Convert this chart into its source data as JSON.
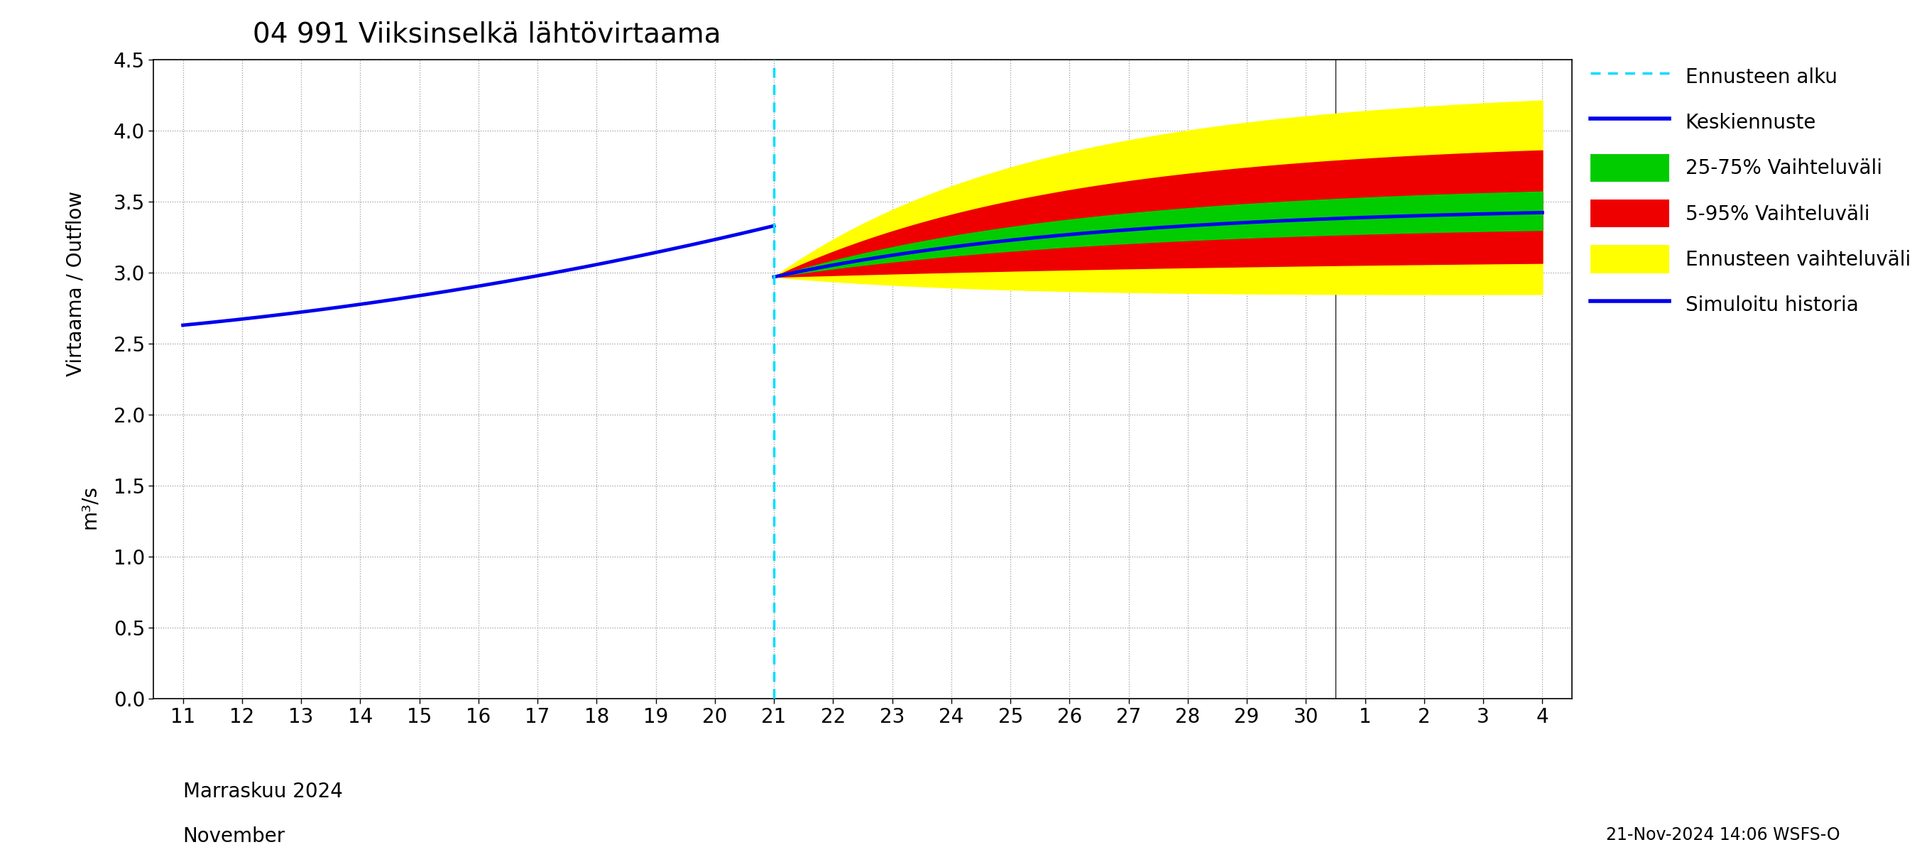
{
  "title": "04 991 Viiksinselkä lähtövirtaama",
  "ylabel_top": "Virtaama / Outflow",
  "ylabel_bottom": "m³/s",
  "ylim": [
    0.0,
    4.5
  ],
  "yticks": [
    0.0,
    0.5,
    1.0,
    1.5,
    2.0,
    2.5,
    3.0,
    3.5,
    4.0,
    4.5
  ],
  "footnote": "21-Nov-2024 14:06 WSFS-O",
  "colors": {
    "history_blue": "#0000EE",
    "cyan_dashed": "#00DDFF",
    "green": "#00CC00",
    "red": "#EE0000",
    "yellow": "#FFFF00",
    "median_blue": "#0000EE"
  },
  "legend_labels": [
    "Ennusteen alku",
    "Keskiennuste",
    "25-75% Vaihteluväli",
    "5-95% Vaihteluväli",
    "Ennusteen vaihteluväli",
    "Simuloitu historia"
  ],
  "month_label_line1": "Marraskuu 2024",
  "month_label_line2": "November",
  "background_color": "#ffffff",
  "grid_color": "#999999"
}
